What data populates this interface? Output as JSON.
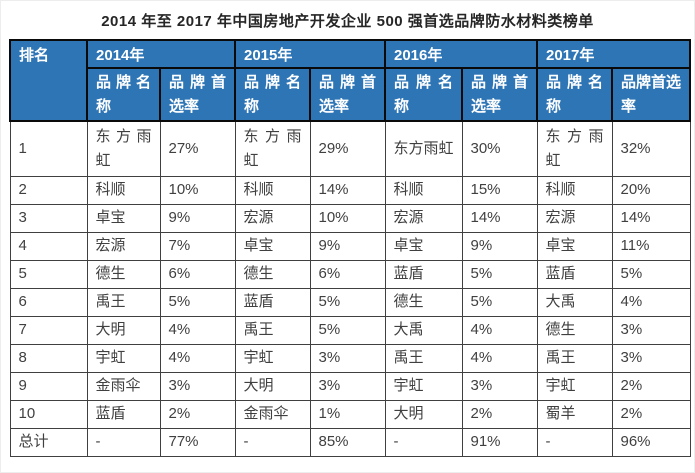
{
  "title": "2014 年至 2017 年中国房地产开发企业 500 强首选品牌防水材料类榜单",
  "colors": {
    "header_bg": "#2E75B6",
    "header_text": "#FFFFFF",
    "body_text": "#404040",
    "border": "#404040",
    "title_text": "#262626"
  },
  "table": {
    "rank_header": "排名",
    "years": [
      "2014年",
      "2015年",
      "2016年",
      "2017年"
    ],
    "sub_headers": {
      "brand": "品牌名称",
      "rate": "品牌首选率"
    },
    "rows": [
      {
        "rank": "1",
        "cells": [
          {
            "brand": "东方雨虹",
            "rate": "27%"
          },
          {
            "brand": "东方雨虹",
            "rate": "29%"
          },
          {
            "brand": "东方雨虹",
            "rate": "30%"
          },
          {
            "brand": "东方雨虹",
            "rate": "32%"
          }
        ]
      },
      {
        "rank": "2",
        "cells": [
          {
            "brand": "科顺",
            "rate": "10%"
          },
          {
            "brand": "科顺",
            "rate": "14%"
          },
          {
            "brand": "科顺",
            "rate": "15%"
          },
          {
            "brand": "科顺",
            "rate": "20%"
          }
        ]
      },
      {
        "rank": "3",
        "cells": [
          {
            "brand": "卓宝",
            "rate": "9%"
          },
          {
            "brand": "宏源",
            "rate": "10%"
          },
          {
            "brand": "宏源",
            "rate": "14%"
          },
          {
            "brand": "宏源",
            "rate": "14%"
          }
        ]
      },
      {
        "rank": "4",
        "cells": [
          {
            "brand": "宏源",
            "rate": "7%"
          },
          {
            "brand": "卓宝",
            "rate": "9%"
          },
          {
            "brand": "卓宝",
            "rate": "9%"
          },
          {
            "brand": "卓宝",
            "rate": "11%"
          }
        ]
      },
      {
        "rank": "5",
        "cells": [
          {
            "brand": "德生",
            "rate": "6%"
          },
          {
            "brand": "德生",
            "rate": "6%"
          },
          {
            "brand": "蓝盾",
            "rate": "5%"
          },
          {
            "brand": "蓝盾",
            "rate": "5%"
          }
        ]
      },
      {
        "rank": "6",
        "cells": [
          {
            "brand": "禹王",
            "rate": "5%"
          },
          {
            "brand": "蓝盾",
            "rate": "5%"
          },
          {
            "brand": "德生",
            "rate": "5%"
          },
          {
            "brand": "大禹",
            "rate": "4%"
          }
        ]
      },
      {
        "rank": "7",
        "cells": [
          {
            "brand": "大明",
            "rate": "4%"
          },
          {
            "brand": "禹王",
            "rate": "5%"
          },
          {
            "brand": "大禹",
            "rate": "4%"
          },
          {
            "brand": "德生",
            "rate": "3%"
          }
        ]
      },
      {
        "rank": "8",
        "cells": [
          {
            "brand": "宇虹",
            "rate": "4%"
          },
          {
            "brand": "宇虹",
            "rate": "3%"
          },
          {
            "brand": "禹王",
            "rate": "4%"
          },
          {
            "brand": "禹王",
            "rate": "3%"
          }
        ]
      },
      {
        "rank": "9",
        "cells": [
          {
            "brand": "金雨伞",
            "rate": "3%"
          },
          {
            "brand": "大明",
            "rate": "3%"
          },
          {
            "brand": "宇虹",
            "rate": "3%"
          },
          {
            "brand": "宇虹",
            "rate": "2%"
          }
        ]
      },
      {
        "rank": "10",
        "cells": [
          {
            "brand": "蓝盾",
            "rate": "2%"
          },
          {
            "brand": "金雨伞",
            "rate": "1%"
          },
          {
            "brand": "大明",
            "rate": "2%"
          },
          {
            "brand": "蜀羊",
            "rate": "2%"
          }
        ]
      },
      {
        "rank": "总计",
        "cells": [
          {
            "brand": "-",
            "rate": "77%"
          },
          {
            "brand": "-",
            "rate": "85%"
          },
          {
            "brand": "-",
            "rate": "91%"
          },
          {
            "brand": "-",
            "rate": "96%"
          }
        ]
      }
    ]
  }
}
